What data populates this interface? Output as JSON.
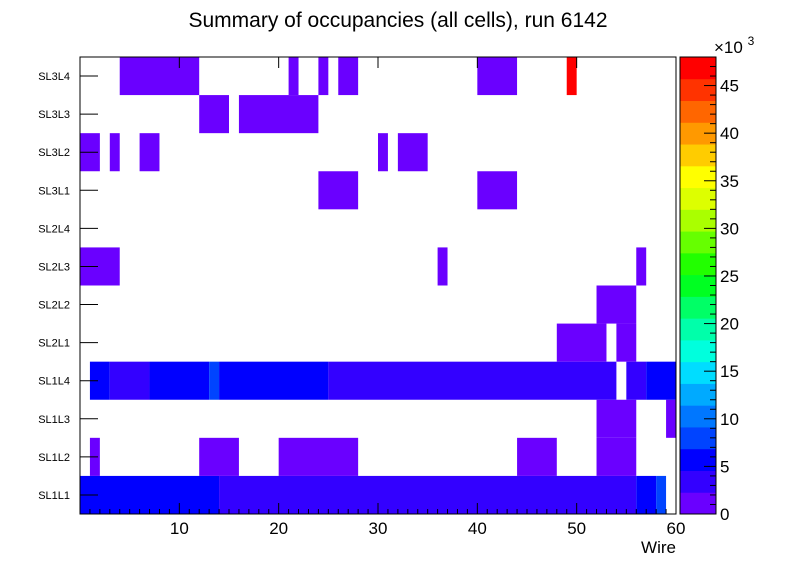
{
  "chart_data": {
    "type": "heatmap",
    "title": "Summary of occupancies (all cells),      run 6142",
    "xlabel": "Wire",
    "ylabel": "",
    "x_range": [
      0,
      60
    ],
    "x_ticks": [
      10,
      20,
      30,
      40,
      50,
      60
    ],
    "y_categories": [
      "SL1L1",
      "SL1L2",
      "SL1L3",
      "SL1L4",
      "SL2L1",
      "SL2L2",
      "SL2L3",
      "SL2L4",
      "SL3L1",
      "SL3L2",
      "SL3L3",
      "SL3L4"
    ],
    "color_scale": {
      "range": [
        0,
        48000
      ],
      "exponent_label": "×10",
      "exponent_sup": "3",
      "tick_labels": [
        "0",
        "5",
        "10",
        "15",
        "20",
        "25",
        "30",
        "35",
        "40",
        "45"
      ],
      "tick_values": [
        0,
        5000,
        10000,
        15000,
        20000,
        25000,
        30000,
        35000,
        40000,
        45000
      ],
      "palette": [
        "#6a00ff",
        "#3300ff",
        "#0000ff",
        "#0044ff",
        "#0077ff",
        "#00aaff",
        "#00ddff",
        "#00ffdd",
        "#00ffaa",
        "#00ff66",
        "#00ff22",
        "#22ff00",
        "#66ff00",
        "#aaff00",
        "#ddff00",
        "#ffff00",
        "#ffcc00",
        "#ff9900",
        "#ff6600",
        "#ff3300",
        "#ff0000"
      ]
    },
    "cells": [
      {
        "layer": "SL1L1",
        "wire_from": 0,
        "wire_to": 14,
        "value": 5500
      },
      {
        "layer": "SL1L1",
        "wire_from": 14,
        "wire_to": 56,
        "value": 3500
      },
      {
        "layer": "SL1L1",
        "wire_from": 56,
        "wire_to": 58,
        "value": 5500
      },
      {
        "layer": "SL1L1",
        "wire_from": 58,
        "wire_to": 59,
        "value": 8000
      },
      {
        "layer": "SL1L2",
        "wire_from": 1,
        "wire_to": 2,
        "value": 1500
      },
      {
        "layer": "SL1L2",
        "wire_from": 12,
        "wire_to": 16,
        "value": 1500
      },
      {
        "layer": "SL1L2",
        "wire_from": 20,
        "wire_to": 28,
        "value": 1500
      },
      {
        "layer": "SL1L2",
        "wire_from": 44,
        "wire_to": 48,
        "value": 1500
      },
      {
        "layer": "SL1L2",
        "wire_from": 52,
        "wire_to": 56,
        "value": 1500
      },
      {
        "layer": "SL1L3",
        "wire_from": 52,
        "wire_to": 56,
        "value": 1500
      },
      {
        "layer": "SL1L3",
        "wire_from": 59,
        "wire_to": 60,
        "value": 1500
      },
      {
        "layer": "SL1L4",
        "wire_from": 1,
        "wire_to": 3,
        "value": 5500
      },
      {
        "layer": "SL1L4",
        "wire_from": 3,
        "wire_to": 7,
        "value": 3500
      },
      {
        "layer": "SL1L4",
        "wire_from": 7,
        "wire_to": 13,
        "value": 5500
      },
      {
        "layer": "SL1L4",
        "wire_from": 13,
        "wire_to": 14,
        "value": 8000
      },
      {
        "layer": "SL1L4",
        "wire_from": 14,
        "wire_to": 25,
        "value": 5500
      },
      {
        "layer": "SL1L4",
        "wire_from": 25,
        "wire_to": 54,
        "value": 3500
      },
      {
        "layer": "SL1L4",
        "wire_from": 55,
        "wire_to": 57,
        "value": 3500
      },
      {
        "layer": "SL1L4",
        "wire_from": 57,
        "wire_to": 60,
        "value": 5500
      },
      {
        "layer": "SL2L1",
        "wire_from": 48,
        "wire_to": 53,
        "value": 1500
      },
      {
        "layer": "SL2L1",
        "wire_from": 54,
        "wire_to": 56,
        "value": 1500
      },
      {
        "layer": "SL2L2",
        "wire_from": 52,
        "wire_to": 56,
        "value": 1500
      },
      {
        "layer": "SL2L3",
        "wire_from": 0,
        "wire_to": 4,
        "value": 1500
      },
      {
        "layer": "SL2L3",
        "wire_from": 36,
        "wire_to": 37,
        "value": 1500
      },
      {
        "layer": "SL2L3",
        "wire_from": 56,
        "wire_to": 57,
        "value": 1500
      },
      {
        "layer": "SL3L1",
        "wire_from": 24,
        "wire_to": 28,
        "value": 1500
      },
      {
        "layer": "SL3L1",
        "wire_from": 40,
        "wire_to": 44,
        "value": 1500
      },
      {
        "layer": "SL3L2",
        "wire_from": 0,
        "wire_to": 2,
        "value": 1500
      },
      {
        "layer": "SL3L2",
        "wire_from": 3,
        "wire_to": 4,
        "value": 1500
      },
      {
        "layer": "SL3L2",
        "wire_from": 6,
        "wire_to": 8,
        "value": 1500
      },
      {
        "layer": "SL3L2",
        "wire_from": 30,
        "wire_to": 31,
        "value": 1500
      },
      {
        "layer": "SL3L2",
        "wire_from": 32,
        "wire_to": 35,
        "value": 1500
      },
      {
        "layer": "SL3L3",
        "wire_from": 12,
        "wire_to": 15,
        "value": 1500
      },
      {
        "layer": "SL3L3",
        "wire_from": 16,
        "wire_to": 24,
        "value": 1500
      },
      {
        "layer": "SL3L4",
        "wire_from": 4,
        "wire_to": 12,
        "value": 1500
      },
      {
        "layer": "SL3L4",
        "wire_from": 21,
        "wire_to": 22,
        "value": 1500
      },
      {
        "layer": "SL3L4",
        "wire_from": 24,
        "wire_to": 25,
        "value": 1500
      },
      {
        "layer": "SL3L4",
        "wire_from": 26,
        "wire_to": 28,
        "value": 1500
      },
      {
        "layer": "SL3L4",
        "wire_from": 40,
        "wire_to": 44,
        "value": 1500
      },
      {
        "layer": "SL3L4",
        "wire_from": 49,
        "wire_to": 50,
        "value": 48000
      }
    ]
  }
}
